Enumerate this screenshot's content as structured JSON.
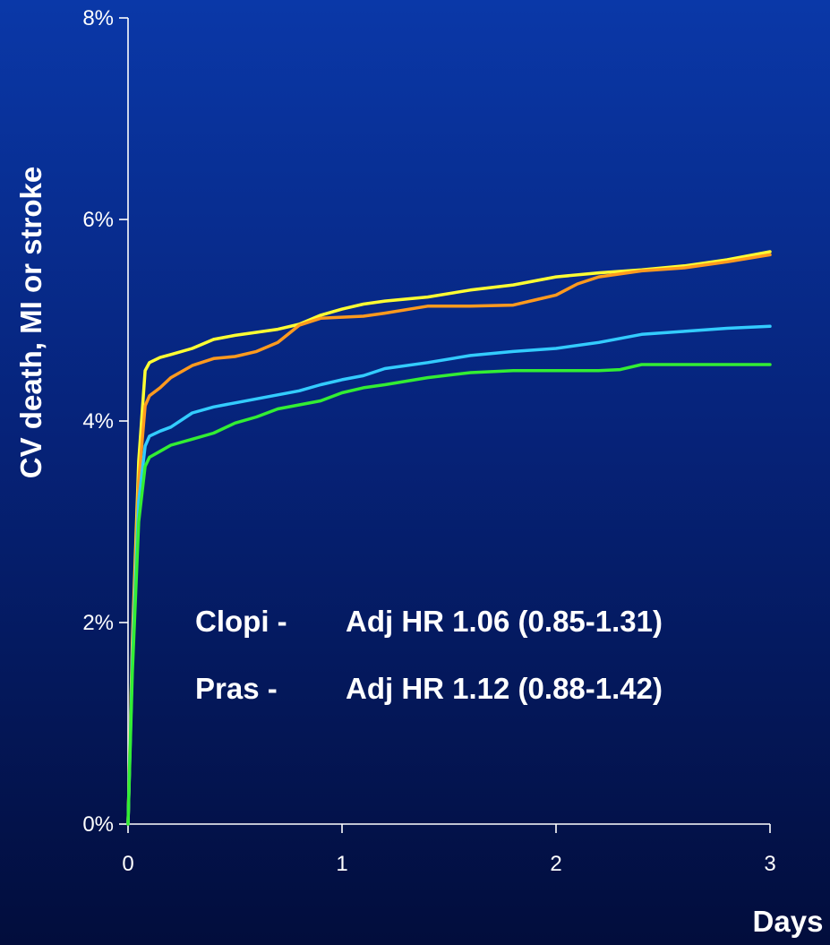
{
  "chart_data": {
    "type": "line",
    "xlabel": "Days",
    "ylabel": "CV death, MI or stroke",
    "xlim": [
      0,
      3
    ],
    "ylim": [
      0,
      8
    ],
    "x_ticks": [
      "0",
      "1",
      "2",
      "3"
    ],
    "y_ticks": [
      "0%",
      "2%",
      "4%",
      "6%",
      "8%"
    ],
    "grid": false,
    "annotations": [
      {
        "label": "Clopi -",
        "text": "Adj HR 1.06 (0.85-1.31)"
      },
      {
        "label": "Pras -",
        "text": "Adj HR 1.12 (0.88-1.42)"
      }
    ],
    "series": [
      {
        "color": "#ffff33",
        "x": [
          0,
          0.02,
          0.05,
          0.08,
          0.1,
          0.15,
          0.2,
          0.3,
          0.4,
          0.5,
          0.6,
          0.7,
          0.8,
          0.9,
          1.0,
          1.1,
          1.2,
          1.4,
          1.6,
          1.8,
          2.0,
          2.2,
          2.4,
          2.6,
          2.8,
          3.0
        ],
        "y": [
          0,
          1.8,
          3.6,
          4.5,
          4.58,
          4.63,
          4.66,
          4.72,
          4.81,
          4.85,
          4.88,
          4.91,
          4.96,
          5.05,
          5.11,
          5.16,
          5.19,
          5.23,
          5.3,
          5.35,
          5.43,
          5.47,
          5.5,
          5.54,
          5.6,
          5.68
        ]
      },
      {
        "color": "#ff9a1e",
        "x": [
          0,
          0.02,
          0.05,
          0.08,
          0.1,
          0.15,
          0.2,
          0.3,
          0.4,
          0.5,
          0.6,
          0.7,
          0.8,
          0.9,
          1.0,
          1.1,
          1.2,
          1.4,
          1.6,
          1.8,
          1.9,
          2.0,
          2.1,
          2.2,
          2.4,
          2.6,
          2.8,
          3.0
        ],
        "y": [
          0,
          1.7,
          3.4,
          4.15,
          4.25,
          4.33,
          4.43,
          4.55,
          4.62,
          4.64,
          4.69,
          4.78,
          4.95,
          5.02,
          5.03,
          5.04,
          5.07,
          5.14,
          5.14,
          5.15,
          5.2,
          5.25,
          5.36,
          5.43,
          5.49,
          5.52,
          5.58,
          5.65
        ]
      },
      {
        "color": "#33ccff",
        "x": [
          0,
          0.02,
          0.05,
          0.08,
          0.1,
          0.15,
          0.2,
          0.3,
          0.4,
          0.5,
          0.6,
          0.7,
          0.8,
          0.9,
          1.0,
          1.1,
          1.2,
          1.4,
          1.6,
          1.8,
          2.0,
          2.2,
          2.4,
          2.6,
          2.8,
          3.0
        ],
        "y": [
          0,
          1.6,
          3.2,
          3.75,
          3.85,
          3.9,
          3.94,
          4.08,
          4.14,
          4.18,
          4.22,
          4.26,
          4.3,
          4.36,
          4.41,
          4.45,
          4.52,
          4.58,
          4.65,
          4.69,
          4.72,
          4.78,
          4.86,
          4.89,
          4.92,
          4.94
        ]
      },
      {
        "color": "#33ee33",
        "x": [
          0,
          0.02,
          0.05,
          0.08,
          0.1,
          0.15,
          0.2,
          0.3,
          0.4,
          0.5,
          0.6,
          0.7,
          0.8,
          0.9,
          1.0,
          1.1,
          1.2,
          1.4,
          1.6,
          1.8,
          2.0,
          2.2,
          2.3,
          2.4,
          2.6,
          2.8,
          3.0
        ],
        "y": [
          0,
          1.5,
          3.0,
          3.55,
          3.64,
          3.7,
          3.76,
          3.82,
          3.88,
          3.98,
          4.04,
          4.12,
          4.16,
          4.2,
          4.28,
          4.33,
          4.36,
          4.43,
          4.48,
          4.5,
          4.5,
          4.5,
          4.51,
          4.56,
          4.56,
          4.56,
          4.56
        ]
      }
    ]
  }
}
